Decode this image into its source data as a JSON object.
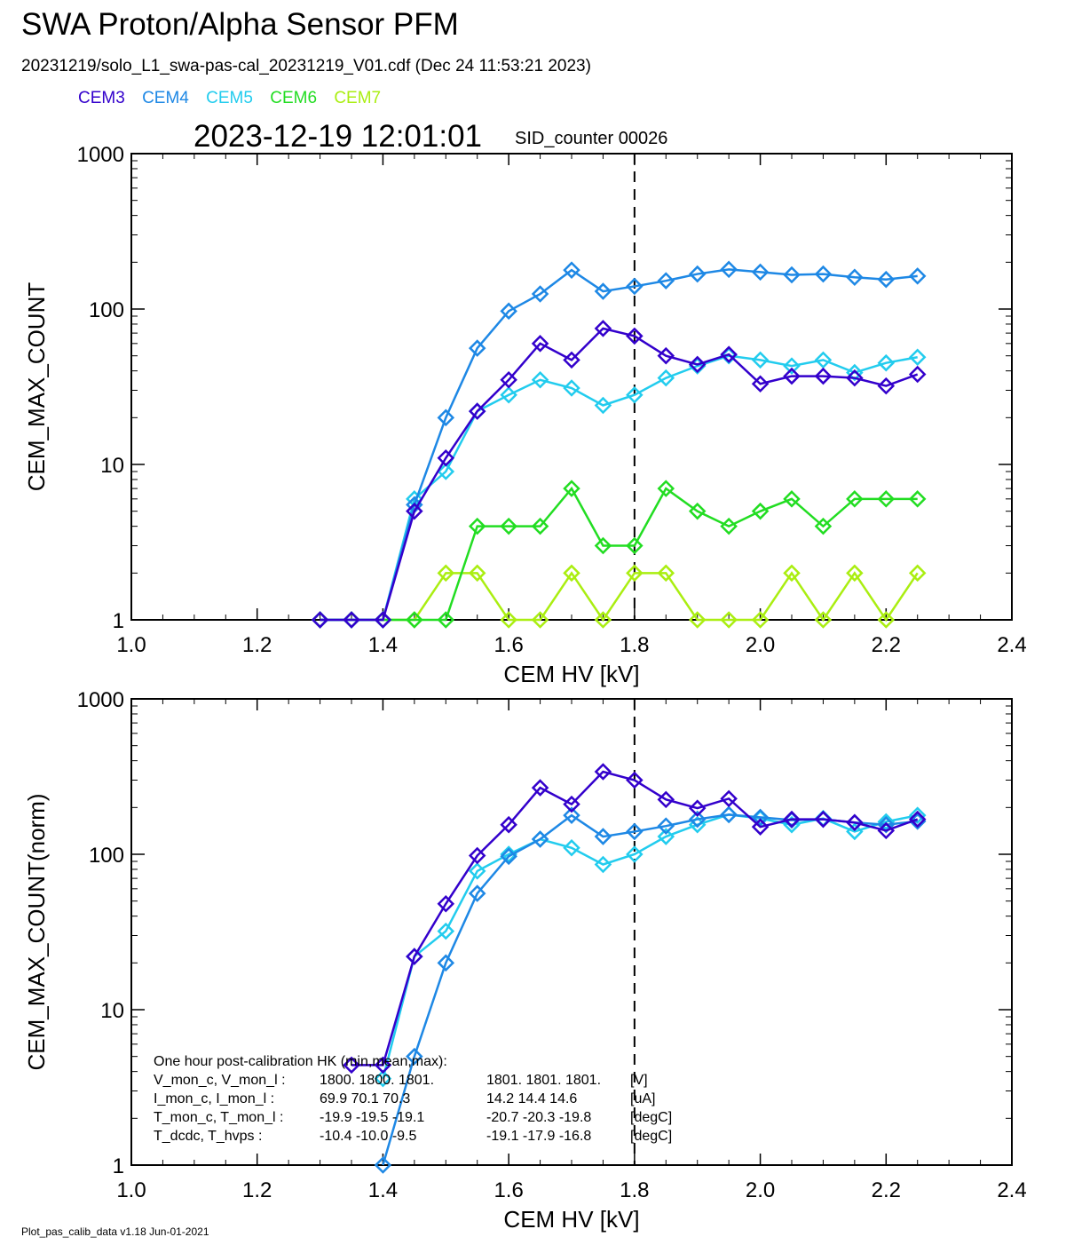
{
  "header": {
    "title": "SWA Proton/Alpha Sensor PFM",
    "file_line": "20231219/solo_L1_swa-pas-cal_20231219_V01.cdf  (Dec 24 11:53:21 2023)",
    "timestamp": "2023-12-19 12:01:01",
    "sid_counter": "SID_counter 00026"
  },
  "legend": [
    {
      "name": "CEM3",
      "color": "#3300CC"
    },
    {
      "name": "CEM4",
      "color": "#1E88E5"
    },
    {
      "name": "CEM5",
      "color": "#22CCEE"
    },
    {
      "name": "CEM6",
      "color": "#22DD22"
    },
    {
      "name": "CEM7",
      "color": "#AAEE11"
    }
  ],
  "footer": "Plot_pas_calib_data v1.18 Jun-01-2021",
  "chart_data": [
    {
      "type": "line",
      "yscale": "log",
      "xlabel": "CEM HV [kV]",
      "ylabel": "CEM_MAX_COUNT",
      "xlim": [
        1.0,
        2.4
      ],
      "ylim": [
        1,
        1000
      ],
      "xticks": [
        "1.0",
        "1.2",
        "1.4",
        "1.6",
        "1.8",
        "2.0",
        "2.2",
        "2.4"
      ],
      "yticks": [
        "1",
        "10",
        "100",
        "1000"
      ],
      "vline": 1.8,
      "x": [
        1.3,
        1.35,
        1.4,
        1.45,
        1.5,
        1.55,
        1.6,
        1.65,
        1.7,
        1.75,
        1.8,
        1.85,
        1.9,
        1.95,
        2.0,
        2.05,
        2.1,
        2.15,
        2.2,
        2.25
      ],
      "series": [
        {
          "name": "CEM3",
          "color": "#3300CC",
          "values": [
            1,
            1,
            1,
            5,
            11,
            22,
            35,
            60,
            47,
            75,
            67,
            50,
            44,
            51,
            33,
            37,
            37,
            36,
            32,
            38
          ]
        },
        {
          "name": "CEM4",
          "color": "#1E88E5",
          "values": [
            1,
            1,
            1,
            5.5,
            20,
            56,
            97,
            125,
            178,
            130,
            140,
            152,
            168,
            180,
            173,
            166,
            168,
            160,
            155,
            163
          ]
        },
        {
          "name": "CEM5",
          "color": "#22CCEE",
          "values": [
            1,
            1,
            1,
            6,
            9,
            22,
            28,
            35,
            31,
            24,
            28,
            36,
            43,
            50,
            47,
            43,
            47,
            39,
            45,
            49
          ]
        },
        {
          "name": "CEM6",
          "color": "#22DD22",
          "values": [
            1,
            1,
            1,
            1,
            1,
            4,
            4,
            4,
            7,
            3,
            3,
            7,
            5,
            4,
            5,
            6,
            4,
            6,
            6,
            6
          ]
        },
        {
          "name": "CEM7",
          "color": "#AAEE11",
          "values": [
            1,
            1,
            1,
            1,
            2,
            2,
            1,
            1,
            2,
            1,
            2,
            2,
            1,
            1,
            1,
            2,
            1,
            2,
            1,
            2
          ]
        }
      ]
    },
    {
      "type": "line",
      "yscale": "log",
      "xlabel": "CEM HV [kV]",
      "ylabel": "CEM_MAX_COUNT(norm)",
      "xlim": [
        1.0,
        2.4
      ],
      "ylim": [
        1,
        1000
      ],
      "xticks": [
        "1.0",
        "1.2",
        "1.4",
        "1.6",
        "1.8",
        "2.0",
        "2.2",
        "2.4"
      ],
      "yticks": [
        "1",
        "10",
        "100",
        "1000"
      ],
      "vline": 1.8,
      "x": [
        1.35,
        1.4,
        1.45,
        1.5,
        1.55,
        1.6,
        1.65,
        1.7,
        1.75,
        1.8,
        1.85,
        1.9,
        1.95,
        2.0,
        2.05,
        2.1,
        2.15,
        2.2,
        2.25
      ],
      "series": [
        {
          "name": "CEM3",
          "color": "#3300CC",
          "values": [
            4.4,
            4.4,
            22,
            48,
            98,
            155,
            268,
            210,
            340,
            300,
            225,
            198,
            228,
            150,
            168,
            168,
            160,
            142,
            168
          ]
        },
        {
          "name": "CEM4",
          "color": "#1E88E5",
          "values": [
            null,
            1,
            5,
            20,
            56,
            97,
            125,
            178,
            130,
            140,
            152,
            168,
            180,
            173,
            166,
            168,
            160,
            155,
            163
          ]
        },
        {
          "name": "CEM5",
          "color": "#22CCEE",
          "values": [
            null,
            3.6,
            22,
            32,
            78,
            100,
            125,
            110,
            86,
            100,
            130,
            155,
            180,
            170,
            155,
            170,
            140,
            162,
            178
          ]
        }
      ],
      "annotation": {
        "title": "One hour post-calibration HK (min,mean,max):",
        "rows": [
          {
            "label": "V_mon_c, V_mon_l :",
            "c_vals": "1800.  1800.  1801.",
            "l_vals": "1801.  1801.  1801.",
            "unit": "[V]"
          },
          {
            "label": "I_mon_c,  I_mon_l :",
            "c_vals": "69.9   70.1   70.3",
            "l_vals": "14.2   14.4   14.6",
            "unit": "[uA]"
          },
          {
            "label": "T_mon_c, T_mon_l :",
            "c_vals": "-19.9  -19.5  -19.1",
            "l_vals": "-20.7  -20.3  -19.8",
            "unit": "[degC]"
          },
          {
            "label": "T_dcdc,    T_hvps :",
            "c_vals": "-10.4  -10.0   -9.5",
            "l_vals": "-19.1  -17.9  -16.8",
            "unit": "[degC]"
          }
        ]
      }
    }
  ]
}
